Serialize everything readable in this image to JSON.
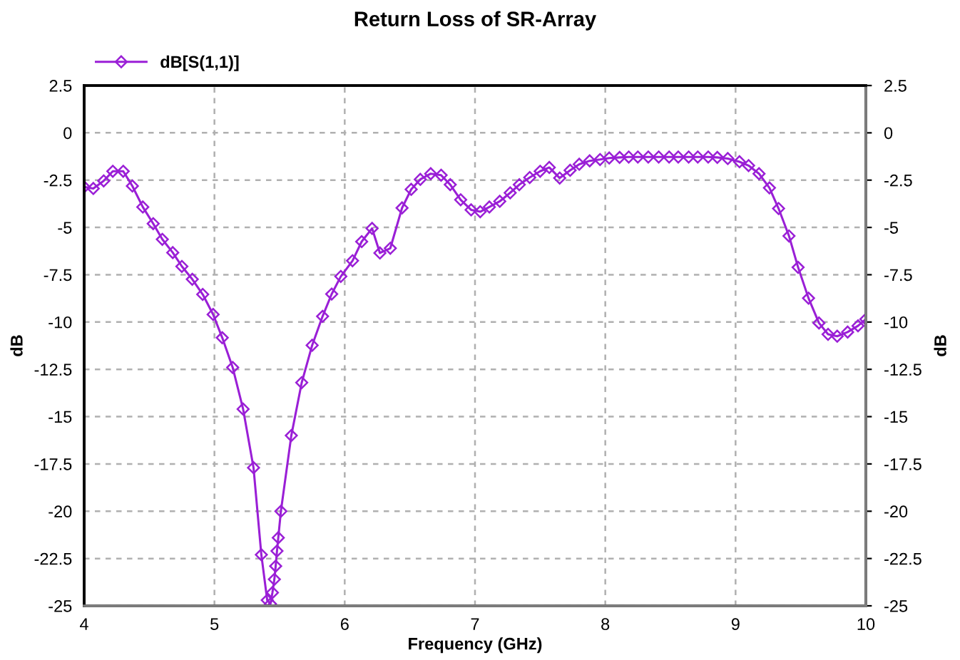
{
  "chart_data": {
    "type": "line",
    "title": "Return Loss of SR-Array",
    "xlabel": "Frequency (GHz)",
    "ylabel": "dB",
    "y2label": "dB",
    "x": [
      4.0,
      4.07,
      4.15,
      4.22,
      4.3,
      4.37,
      4.45,
      4.53,
      4.6,
      4.68,
      4.75,
      4.83,
      4.91,
      4.99,
      5.06,
      5.14,
      5.22,
      5.3,
      5.36,
      5.405,
      5.43,
      5.445,
      5.46,
      5.47,
      5.48,
      5.49,
      5.51,
      5.59,
      5.67,
      5.75,
      5.83,
      5.9,
      5.97,
      6.06,
      6.13,
      6.21,
      6.27,
      6.35,
      6.44,
      6.51,
      6.58,
      6.66,
      6.74,
      6.81,
      6.89,
      6.97,
      7.04,
      7.11,
      7.19,
      7.27,
      7.34,
      7.42,
      7.5,
      7.57,
      7.65,
      7.73,
      7.8,
      7.88,
      7.96,
      8.03,
      8.11,
      8.18,
      8.25,
      8.33,
      8.41,
      8.49,
      8.56,
      8.64,
      8.71,
      8.79,
      8.86,
      8.94,
      9.03,
      9.1,
      9.18,
      9.26,
      9.33,
      9.41,
      9.48,
      9.56,
      9.64,
      9.71,
      9.78,
      9.86,
      9.94,
      10.0
    ],
    "series": [
      {
        "name": "dB[S(1,1)]",
        "color": "#9a1fd6",
        "values": [
          -2.86,
          -2.94,
          -2.54,
          -2.03,
          -2.03,
          -2.81,
          -3.92,
          -4.8,
          -5.63,
          -6.33,
          -7.06,
          -7.74,
          -8.54,
          -9.6,
          -10.83,
          -12.4,
          -14.6,
          -17.7,
          -22.3,
          -24.7,
          -24.9,
          -24.3,
          -23.6,
          -22.9,
          -22.1,
          -21.4,
          -20.0,
          -16.0,
          -13.2,
          -11.23,
          -9.7,
          -8.52,
          -7.59,
          -6.76,
          -5.75,
          -5.05,
          -6.35,
          -6.1,
          -3.97,
          -2.99,
          -2.46,
          -2.16,
          -2.24,
          -2.74,
          -3.54,
          -4.07,
          -4.17,
          -3.92,
          -3.62,
          -3.17,
          -2.74,
          -2.36,
          -2.03,
          -1.83,
          -2.39,
          -1.98,
          -1.66,
          -1.48,
          -1.41,
          -1.33,
          -1.3,
          -1.28,
          -1.28,
          -1.28,
          -1.28,
          -1.28,
          -1.28,
          -1.28,
          -1.28,
          -1.28,
          -1.3,
          -1.36,
          -1.53,
          -1.73,
          -2.16,
          -2.91,
          -4.0,
          -5.45,
          -7.11,
          -8.74,
          -10.05,
          -10.65,
          -10.75,
          -10.53,
          -10.2,
          -9.85
        ]
      }
    ],
    "xlim": [
      4,
      10
    ],
    "xticks": [
      4,
      5,
      6,
      7,
      8,
      9,
      10
    ],
    "ylim": [
      -25,
      2.5
    ],
    "yticks": [
      -25,
      -22.5,
      -20,
      -17.5,
      -15,
      -12.5,
      -10,
      -7.5,
      -5,
      -2.5,
      0,
      2.5
    ],
    "y2lim": [
      -25,
      2.5
    ],
    "y2ticks": [
      -25,
      -22.5,
      -20,
      -17.5,
      -15,
      -12.5,
      -10,
      -7.5,
      -5,
      -2.5,
      0,
      2.5
    ],
    "grid": true,
    "legend": "top left",
    "marker": "diamond",
    "line_style": "solid"
  }
}
